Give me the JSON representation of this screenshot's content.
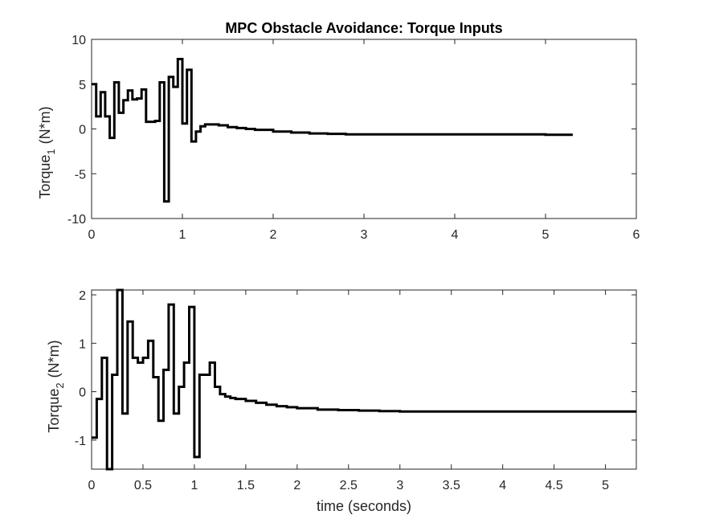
{
  "chart_data": [
    {
      "type": "line",
      "step": true,
      "title": "MPC Obstacle Avoidance: Torque Inputs",
      "ylabel": {
        "main": "Torque",
        "sub": "1",
        "unit": "(N*m)"
      },
      "xlabel": "",
      "xlim": [
        0,
        6
      ],
      "ylim": [
        -10,
        10
      ],
      "xticks": [
        0,
        1,
        2,
        3,
        4,
        5,
        6
      ],
      "xtick_labels": [
        "0",
        "1",
        "2",
        "3",
        "4",
        "5",
        "6"
      ],
      "yticks": [
        -10,
        -5,
        0,
        5,
        10
      ],
      "ytick_labels": [
        "-10",
        "-5",
        "0",
        "5",
        "10"
      ],
      "grid": false,
      "line_color": "#000000",
      "series": [
        {
          "x": [
            0,
            0.05,
            0.1,
            0.15,
            0.2,
            0.25,
            0.3,
            0.35,
            0.4,
            0.45,
            0.5,
            0.55,
            0.6,
            0.65,
            0.7,
            0.75,
            0.8,
            0.85,
            0.9,
            0.95,
            1.0,
            1.05,
            1.1,
            1.15,
            1.2,
            1.25,
            1.3,
            1.4,
            1.5,
            1.6,
            1.7,
            1.8,
            2.0,
            2.2,
            2.4,
            2.6,
            2.8,
            3.0,
            3.5,
            4.0,
            4.5,
            5.0,
            5.3
          ],
          "y": [
            5.0,
            1.4,
            4.1,
            1.4,
            -1.0,
            5.2,
            1.8,
            3.2,
            4.3,
            3.3,
            3.4,
            4.4,
            0.8,
            0.8,
            0.9,
            5.2,
            -8.1,
            5.8,
            4.7,
            7.8,
            0.6,
            6.6,
            -1.4,
            -0.3,
            0.3,
            0.5,
            0.5,
            0.4,
            0.2,
            0.1,
            0.0,
            -0.1,
            -0.3,
            -0.4,
            -0.5,
            -0.55,
            -0.6,
            -0.6,
            -0.6,
            -0.6,
            -0.6,
            -0.65,
            -0.65
          ]
        }
      ]
    },
    {
      "type": "line",
      "step": true,
      "title": "",
      "xlabel": "time (seconds)",
      "ylabel": {
        "main": "Torque",
        "sub": "2",
        "unit": "(N*m)"
      },
      "xlim": [
        0,
        5.3
      ],
      "ylim": [
        -1.6,
        2.1
      ],
      "xticks": [
        0,
        0.5,
        1,
        1.5,
        2,
        2.5,
        3,
        3.5,
        4,
        4.5,
        5
      ],
      "xtick_labels": [
        "0",
        "0.5",
        "1",
        "1.5",
        "2",
        "2.5",
        "3",
        "3.5",
        "4",
        "4.5",
        "5"
      ],
      "yticks": [
        -1,
        0,
        1,
        2
      ],
      "ytick_labels": [
        "-1",
        "0",
        "1",
        "2"
      ],
      "grid": false,
      "line_color": "#000000",
      "series": [
        {
          "x": [
            0,
            0.05,
            0.1,
            0.15,
            0.2,
            0.25,
            0.3,
            0.35,
            0.4,
            0.45,
            0.5,
            0.55,
            0.6,
            0.65,
            0.7,
            0.75,
            0.8,
            0.85,
            0.9,
            0.95,
            1.0,
            1.05,
            1.1,
            1.15,
            1.2,
            1.25,
            1.3,
            1.35,
            1.4,
            1.5,
            1.6,
            1.7,
            1.8,
            1.9,
            2.0,
            2.2,
            2.4,
            2.6,
            2.8,
            3.0,
            3.5,
            4.0,
            4.5,
            5.0,
            5.3
          ],
          "y": [
            -0.95,
            -0.15,
            0.7,
            -1.6,
            0.35,
            2.1,
            -0.45,
            1.45,
            0.7,
            0.6,
            0.7,
            1.05,
            0.3,
            -0.6,
            0.45,
            1.8,
            -0.45,
            0.1,
            0.6,
            1.75,
            -1.35,
            0.35,
            0.35,
            0.6,
            0.1,
            -0.05,
            -0.1,
            -0.13,
            -0.15,
            -0.19,
            -0.23,
            -0.27,
            -0.3,
            -0.32,
            -0.34,
            -0.37,
            -0.38,
            -0.39,
            -0.4,
            -0.41,
            -0.41,
            -0.41,
            -0.41,
            -0.41,
            -0.41
          ]
        }
      ]
    }
  ]
}
